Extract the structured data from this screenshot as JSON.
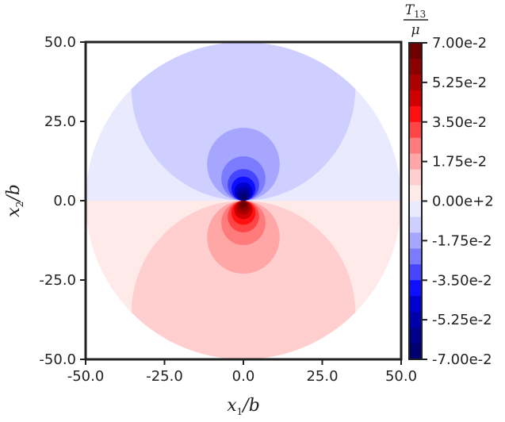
{
  "chart_data": {
    "type": "heatmap",
    "title": "",
    "xlabel": {
      "var": "x",
      "sub": "1",
      "tail": "/b"
    },
    "ylabel": {
      "var": "x",
      "sub": "2",
      "tail": "/b"
    },
    "xlim": [
      -50,
      50
    ],
    "ylim": [
      -50,
      50
    ],
    "x_ticks": [
      -50,
      -25,
      0,
      25,
      50
    ],
    "y_ticks": [
      -50,
      -25,
      0,
      25,
      50
    ],
    "x_tick_labels": [
      "-50.0",
      "-25.0",
      "0.0",
      "25.0",
      "50.0"
    ],
    "y_tick_labels": [
      "-50.0",
      "-25.0",
      "0.0",
      "25.0",
      "50.0"
    ],
    "domain": {
      "shape": "disk",
      "center": [
        0,
        0
      ],
      "radius": 50
    },
    "field_description": "antisymmetric dipole: negative (blue) for x2 > 0, positive (red) for x2 < 0, magnitude increasing toward origin",
    "regions": [
      {
        "sign": -1,
        "center": [
          0,
          35.5
        ],
        "radius": 35.5,
        "level_index": 1
      },
      {
        "sign": -1,
        "center": [
          0,
          11.5
        ],
        "radius": 11.5,
        "level_index": 2
      },
      {
        "sign": -1,
        "center": [
          0,
          7
        ],
        "radius": 7,
        "level_index": 3
      },
      {
        "sign": -1,
        "center": [
          0,
          5
        ],
        "radius": 5,
        "level_index": 4
      },
      {
        "sign": -1,
        "center": [
          0,
          3.8
        ],
        "radius": 3.8,
        "level_index": 5
      },
      {
        "sign": -1,
        "center": [
          0,
          2.9
        ],
        "radius": 2.9,
        "level_index": 6
      },
      {
        "sign": -1,
        "center": [
          0,
          2.2
        ],
        "radius": 2.2,
        "level_index": 7
      },
      {
        "sign": -1,
        "center": [
          0,
          1.6
        ],
        "radius": 1.6,
        "level_index": 8
      },
      {
        "sign": -1,
        "center": [
          0,
          1.1
        ],
        "radius": 1.1,
        "level_index": 9
      },
      {
        "sign": 1,
        "center": [
          0,
          -35.5
        ],
        "radius": 35.5,
        "level_index": 1
      },
      {
        "sign": 1,
        "center": [
          0,
          -11.5
        ],
        "radius": 11.5,
        "level_index": 2
      },
      {
        "sign": 1,
        "center": [
          0,
          -7
        ],
        "radius": 7,
        "level_index": 3
      },
      {
        "sign": 1,
        "center": [
          0,
          -5
        ],
        "radius": 5,
        "level_index": 4
      },
      {
        "sign": 1,
        "center": [
          0,
          -3.8
        ],
        "radius": 3.8,
        "level_index": 5
      },
      {
        "sign": 1,
        "center": [
          0,
          -2.9
        ],
        "radius": 2.9,
        "level_index": 6
      },
      {
        "sign": 1,
        "center": [
          0,
          -2.2
        ],
        "radius": 2.2,
        "level_index": 7
      },
      {
        "sign": 1,
        "center": [
          0,
          -1.6
        ],
        "radius": 1.6,
        "level_index": 8
      },
      {
        "sign": 1,
        "center": [
          0,
          -1.1
        ],
        "radius": 1.1,
        "level_index": 9
      }
    ],
    "colorbar": {
      "label": {
        "num_var": "T",
        "num_sub": "13",
        "den": "μ"
      },
      "min": -0.07,
      "max": 0.07,
      "levels": 20,
      "colormap": "seismic",
      "ticks": [
        0.07,
        0.0525,
        0.035,
        0.0175,
        0.0,
        -0.0175,
        -0.035,
        -0.0525,
        -0.07
      ],
      "tick_labels": [
        "7.00e-2",
        "5.25e-2",
        "3.50e-2",
        "1.75e-2",
        "0.00e+2",
        "-1.75e-2",
        "-3.50e-2",
        "-5.25e-2",
        "-7.00e-2"
      ],
      "colors_top_to_bottom": [
        "#6f0000",
        "#8b0000",
        "#ab0000",
        "#d00000",
        "#ff0f0f",
        "#ff4545",
        "#ff7b7b",
        "#ffa6a6",
        "#ffcfcf",
        "#ffeaea",
        "#eaeaff",
        "#cfcfff",
        "#a6a6ff",
        "#7b7bff",
        "#4545ff",
        "#0f0fff",
        "#0000d0",
        "#0000ab",
        "#00008b",
        "#00006f"
      ]
    }
  }
}
